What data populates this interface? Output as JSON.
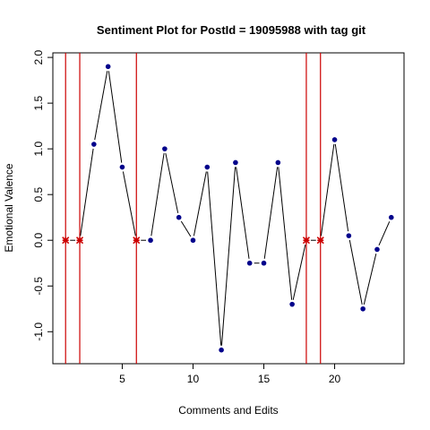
{
  "chart_data": {
    "type": "line",
    "title": "Sentiment Plot for PostId =  19095988  with tag  git",
    "xlabel": "Comments and Edits",
    "ylabel": "Emotional Valence",
    "xlim": [
      0.1,
      24.9
    ],
    "ylim": [
      -1.35,
      2.05
    ],
    "x_ticks": [
      5,
      10,
      15,
      20
    ],
    "y_ticks": [
      -1.0,
      -0.5,
      0.0,
      0.5,
      1.0,
      1.5,
      2.0
    ],
    "y_tick_labels": [
      "-1.0",
      "-0.5",
      "0.0",
      "0.5",
      "1.0",
      "1.5",
      "2.0"
    ],
    "x": [
      1,
      2,
      3,
      4,
      5,
      6,
      7,
      8,
      9,
      10,
      11,
      12,
      13,
      14,
      15,
      16,
      17,
      18,
      19,
      20,
      21,
      22,
      23,
      24
    ],
    "values": [
      0,
      0,
      1.05,
      1.9,
      0.8,
      0,
      0,
      1.0,
      0.25,
      0,
      0.8,
      -1.2,
      0.85,
      -0.25,
      -0.25,
      0.85,
      -0.7,
      0,
      0,
      1.1,
      0.05,
      -0.75,
      -0.1,
      0.25
    ],
    "highlighted_x": [
      1,
      2,
      6,
      18,
      19
    ],
    "vertical_lines_x": [
      1,
      2,
      6,
      18,
      19
    ],
    "colors": {
      "line": "#000000",
      "point": "#00008B",
      "highlight": "#CC0000",
      "vline": "#CC0000"
    },
    "grid": false,
    "legend": "none"
  }
}
